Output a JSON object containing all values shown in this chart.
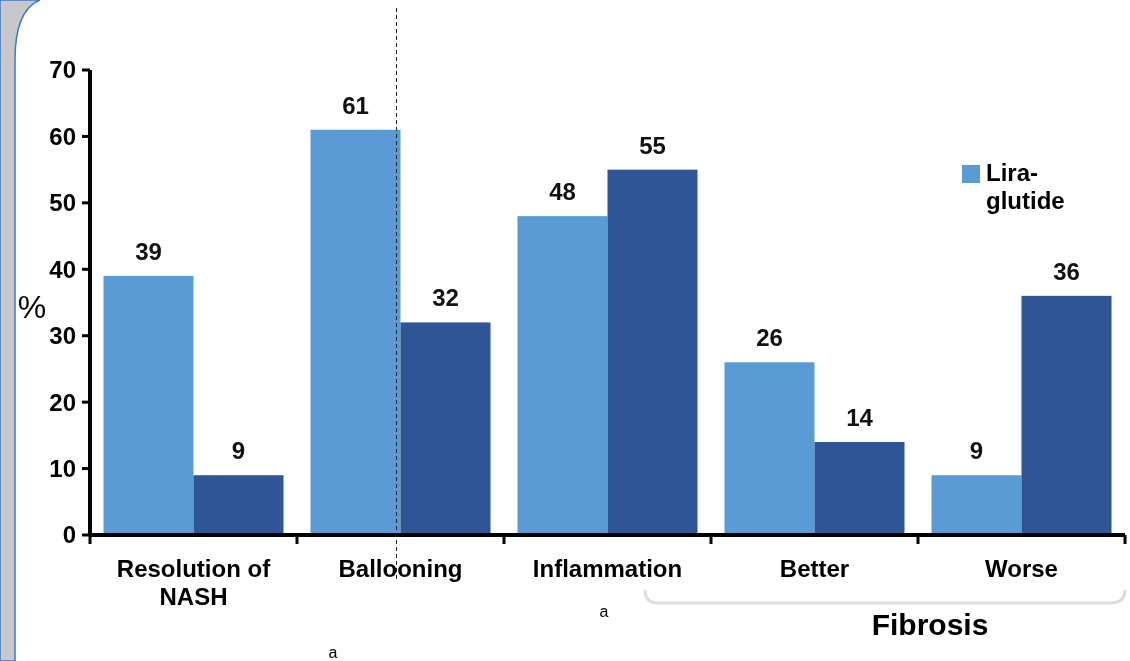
{
  "chart_data": {
    "type": "bar",
    "ylabel": "%",
    "categories": [
      "Resolution of NASH",
      "Ballooning",
      "Inflammation",
      "Better",
      "Worse"
    ],
    "series": [
      {
        "name": "Lira-glutide",
        "color": "#5b9bd5",
        "values": [
          39,
          61,
          48,
          26,
          9
        ]
      },
      {
        "color": "#2f5597",
        "values": [
          9,
          32,
          55,
          14,
          36
        ]
      }
    ],
    "ylim": [
      0,
      70
    ],
    "yticks": [
      0,
      10,
      20,
      30,
      40,
      50,
      60,
      70
    ],
    "data_labels": true,
    "grid": false,
    "legend": "top right",
    "ref_lines": [
      {
        "axis": "x",
        "value": "Ballooning",
        "line_style": "dashed",
        "color": "#222222"
      }
    ],
    "annotations": [
      "a",
      "a",
      "Fibrosis"
    ]
  }
}
